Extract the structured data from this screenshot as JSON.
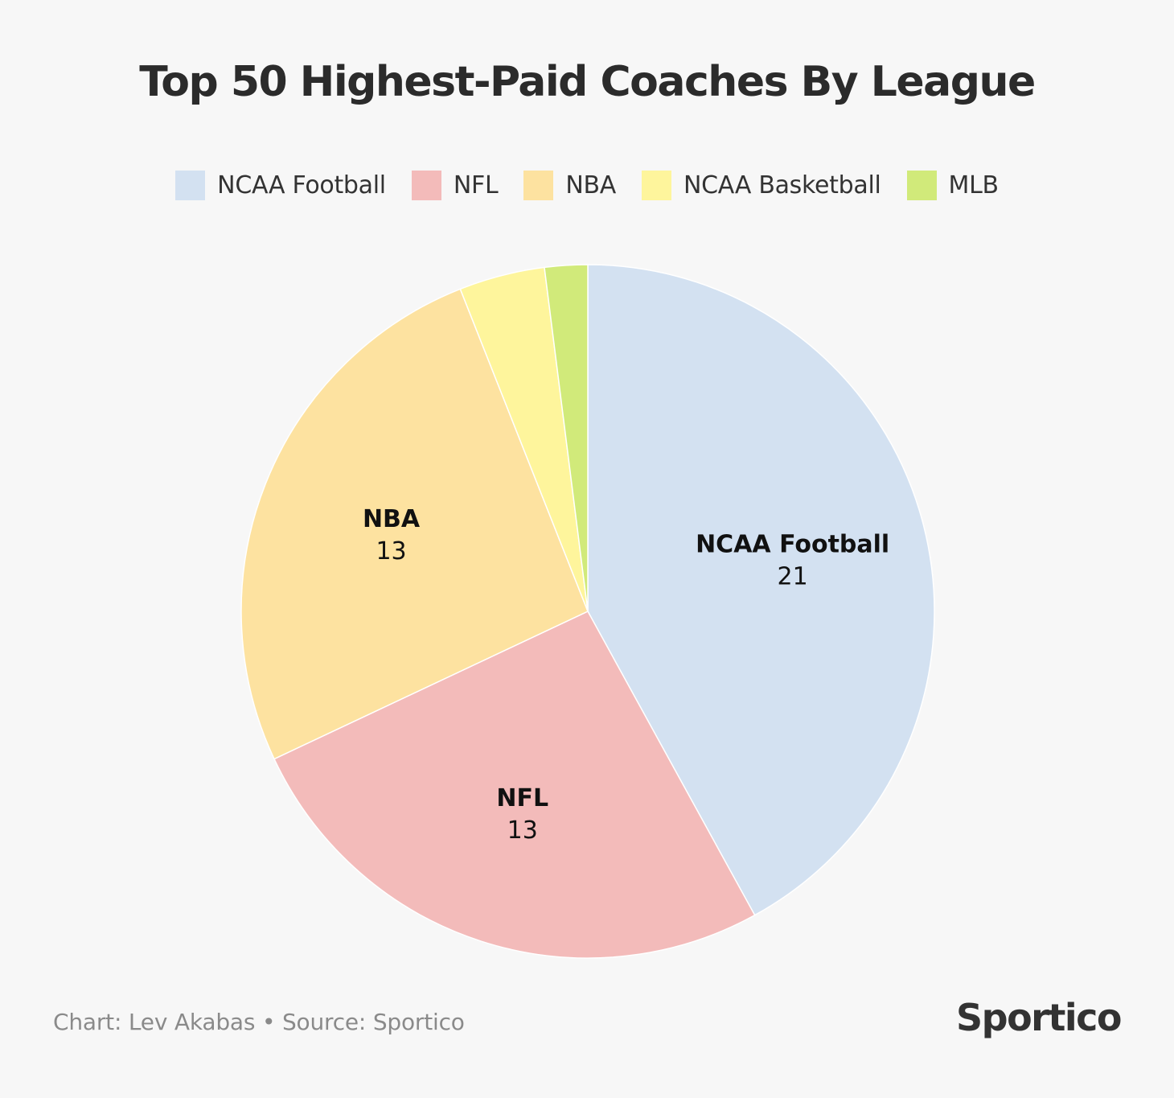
{
  "title": "Top 50 Highest-Paid Coaches By League",
  "credit": "Chart: Lev Akabas • Source: Sportico",
  "logo": "Sportico",
  "chart_data": {
    "type": "pie",
    "title": "Top 50 Highest-Paid Coaches By League",
    "legend_position": "top",
    "start_angle": "12 o'clock",
    "direction": "clockwise",
    "categories": [
      "NCAA Football",
      "NFL",
      "NBA",
      "NCAA Basketball",
      "MLB"
    ],
    "values": [
      21,
      13,
      13,
      2,
      1
    ],
    "colors": [
      "#d3e1f1",
      "#f3bbba",
      "#fde2a0",
      "#fef59c",
      "#d1ea7a"
    ],
    "data_labels": [
      {
        "name": "NCAA Football",
        "value": "21"
      },
      {
        "name": "NFL",
        "value": "13"
      },
      {
        "name": "NBA",
        "value": "13"
      }
    ]
  }
}
